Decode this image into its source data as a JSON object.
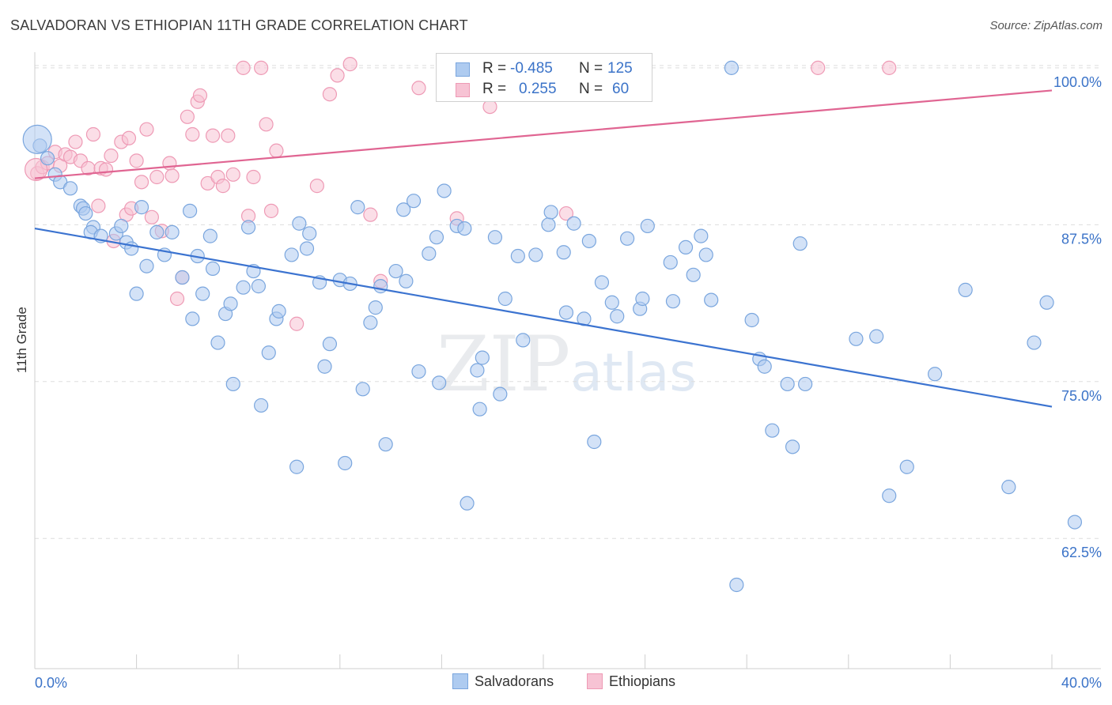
{
  "title": "SALVADORAN VS ETHIOPIAN 11TH GRADE CORRELATION CHART",
  "source": "Source: ZipAtlas.com",
  "watermark": {
    "zip": "ZIP",
    "atlas": "atlas"
  },
  "legend": {
    "rows": [
      {
        "r_label": "R =",
        "r_value": "-0.485",
        "n_label": "N =",
        "n_value": "125"
      },
      {
        "r_label": "R =",
        "r_value": "0.255",
        "n_label": "N =",
        "n_value": "60"
      }
    ]
  },
  "colors": {
    "salvadoran_fill": "#aecbf0",
    "salvadoran_stroke": "#7aa6de",
    "salvadoran_line": "#3b73d0",
    "ethiopian_fill": "#f7c3d4",
    "ethiopian_stroke": "#ee9ab5",
    "ethiopian_line": "#e06592",
    "tick_label": "#3b73c8",
    "grid": "#dddddd"
  },
  "chart_data": {
    "type": "scatter",
    "title": "SALVADORAN VS ETHIOPIAN 11TH GRADE CORRELATION CHART",
    "xlabel": "",
    "ylabel": "11th Grade",
    "xlim": [
      0,
      40
    ],
    "ylim": [
      52.5,
      101
    ],
    "x_tick_labels": [
      "0.0%",
      "40.0%"
    ],
    "y_ticks": [
      62.5,
      75.0,
      87.5,
      100.0
    ],
    "y_tick_labels": [
      "62.5%",
      "75.0%",
      "87.5%",
      "100.0%"
    ],
    "grid": true,
    "legend_position": "bottom",
    "series": [
      {
        "name": "Salvadorans",
        "r": -0.485,
        "n": 125,
        "trend": {
          "x": [
            0,
            40
          ],
          "y": [
            87.2,
            73.0
          ]
        },
        "points": [
          [
            0.2,
            93.8
          ],
          [
            0.5,
            92.8
          ],
          [
            0.8,
            91.5
          ],
          [
            1.0,
            90.9
          ],
          [
            1.4,
            90.4
          ],
          [
            1.8,
            89.0
          ],
          [
            1.9,
            88.8
          ],
          [
            2.0,
            88.4
          ],
          [
            2.3,
            87.3
          ],
          [
            2.2,
            86.9
          ],
          [
            2.6,
            86.6
          ],
          [
            3.2,
            86.8
          ],
          [
            3.4,
            87.4
          ],
          [
            3.6,
            86.1
          ],
          [
            3.8,
            85.6
          ],
          [
            4.0,
            82.0
          ],
          [
            4.2,
            88.9
          ],
          [
            4.4,
            84.2
          ],
          [
            4.8,
            86.9
          ],
          [
            5.1,
            85.1
          ],
          [
            5.4,
            86.9
          ],
          [
            5.8,
            83.3
          ],
          [
            6.1,
            88.6
          ],
          [
            6.2,
            80.0
          ],
          [
            6.4,
            85.0
          ],
          [
            6.6,
            82.0
          ],
          [
            6.9,
            86.6
          ],
          [
            7.0,
            84.0
          ],
          [
            7.2,
            78.1
          ],
          [
            7.5,
            80.4
          ],
          [
            7.7,
            81.2
          ],
          [
            7.8,
            74.8
          ],
          [
            8.2,
            82.5
          ],
          [
            8.4,
            87.3
          ],
          [
            8.6,
            83.8
          ],
          [
            8.8,
            82.6
          ],
          [
            8.9,
            73.1
          ],
          [
            9.2,
            77.3
          ],
          [
            9.5,
            80.0
          ],
          [
            9.6,
            80.6
          ],
          [
            10.1,
            85.1
          ],
          [
            10.3,
            68.2
          ],
          [
            10.4,
            87.6
          ],
          [
            10.7,
            85.6
          ],
          [
            10.8,
            86.8
          ],
          [
            11.2,
            82.9
          ],
          [
            11.4,
            76.2
          ],
          [
            11.6,
            78.0
          ],
          [
            12.0,
            83.1
          ],
          [
            12.2,
            68.5
          ],
          [
            12.4,
            82.8
          ],
          [
            12.7,
            88.9
          ],
          [
            12.9,
            74.4
          ],
          [
            13.2,
            79.7
          ],
          [
            13.4,
            80.9
          ],
          [
            13.6,
            82.6
          ],
          [
            13.8,
            70.0
          ],
          [
            14.2,
            83.8
          ],
          [
            14.5,
            88.7
          ],
          [
            14.6,
            83.0
          ],
          [
            14.9,
            89.4
          ],
          [
            15.1,
            75.8
          ],
          [
            15.5,
            85.2
          ],
          [
            15.8,
            86.5
          ],
          [
            15.9,
            74.9
          ],
          [
            16.1,
            90.2
          ],
          [
            16.6,
            87.4
          ],
          [
            16.9,
            87.2
          ],
          [
            17.0,
            65.3
          ],
          [
            17.4,
            75.9
          ],
          [
            17.5,
            72.8
          ],
          [
            17.6,
            76.9
          ],
          [
            18.1,
            86.5
          ],
          [
            18.3,
            74.0
          ],
          [
            18.5,
            81.6
          ],
          [
            19.0,
            85.0
          ],
          [
            19.2,
            78.3
          ],
          [
            19.7,
            85.1
          ],
          [
            20.2,
            87.5
          ],
          [
            20.3,
            88.5
          ],
          [
            20.8,
            85.3
          ],
          [
            20.9,
            80.5
          ],
          [
            21.2,
            87.6
          ],
          [
            21.6,
            80.0
          ],
          [
            21.8,
            86.2
          ],
          [
            22.0,
            70.2
          ],
          [
            22.3,
            82.9
          ],
          [
            22.7,
            81.3
          ],
          [
            22.9,
            80.2
          ],
          [
            23.3,
            86.4
          ],
          [
            23.8,
            80.8
          ],
          [
            23.9,
            81.6
          ],
          [
            24.1,
            87.4
          ],
          [
            25.0,
            84.5
          ],
          [
            25.1,
            81.4
          ],
          [
            25.6,
            85.7
          ],
          [
            25.9,
            83.5
          ],
          [
            26.2,
            86.6
          ],
          [
            26.4,
            85.1
          ],
          [
            26.6,
            81.5
          ],
          [
            27.4,
            100.0
          ],
          [
            27.6,
            58.8
          ],
          [
            28.2,
            79.9
          ],
          [
            28.5,
            76.8
          ],
          [
            28.7,
            76.2
          ],
          [
            29.0,
            71.1
          ],
          [
            29.6,
            74.8
          ],
          [
            29.8,
            69.8
          ],
          [
            30.1,
            86.0
          ],
          [
            30.3,
            74.8
          ],
          [
            32.3,
            78.4
          ],
          [
            33.1,
            78.6
          ],
          [
            33.6,
            65.9
          ],
          [
            34.3,
            68.2
          ],
          [
            35.4,
            75.6
          ],
          [
            36.6,
            82.3
          ],
          [
            38.3,
            66.6
          ],
          [
            39.3,
            78.1
          ],
          [
            39.8,
            81.3
          ],
          [
            40.9,
            63.8
          ]
        ]
      },
      {
        "name": "Ethiopians",
        "r": 0.255,
        "n": 60,
        "trend": {
          "x": [
            0,
            40
          ],
          "y": [
            91.2,
            98.2
          ]
        },
        "points": [
          [
            0.1,
            91.6
          ],
          [
            0.3,
            92.1
          ],
          [
            0.5,
            92.4
          ],
          [
            0.8,
            93.3
          ],
          [
            1.0,
            92.2
          ],
          [
            1.2,
            93.1
          ],
          [
            1.4,
            92.9
          ],
          [
            1.6,
            94.1
          ],
          [
            1.8,
            92.6
          ],
          [
            2.1,
            92.0
          ],
          [
            2.3,
            94.7
          ],
          [
            2.5,
            89.0
          ],
          [
            2.6,
            92.0
          ],
          [
            2.8,
            91.9
          ],
          [
            3.0,
            93.0
          ],
          [
            3.1,
            86.2
          ],
          [
            3.4,
            94.1
          ],
          [
            3.6,
            88.3
          ],
          [
            3.7,
            94.4
          ],
          [
            3.8,
            88.8
          ],
          [
            4.0,
            92.6
          ],
          [
            4.2,
            90.9
          ],
          [
            4.4,
            95.1
          ],
          [
            4.6,
            88.1
          ],
          [
            4.8,
            91.3
          ],
          [
            5.0,
            87.0
          ],
          [
            5.3,
            92.4
          ],
          [
            5.4,
            91.4
          ],
          [
            5.6,
            81.6
          ],
          [
            5.8,
            83.3
          ],
          [
            6.0,
            96.1
          ],
          [
            6.2,
            94.7
          ],
          [
            6.4,
            97.3
          ],
          [
            6.5,
            97.8
          ],
          [
            6.8,
            90.8
          ],
          [
            7.0,
            94.6
          ],
          [
            7.2,
            91.3
          ],
          [
            7.4,
            90.6
          ],
          [
            7.6,
            94.6
          ],
          [
            7.8,
            91.5
          ],
          [
            8.2,
            100.0
          ],
          [
            8.4,
            88.2
          ],
          [
            8.6,
            91.3
          ],
          [
            8.9,
            100.0
          ],
          [
            9.1,
            95.5
          ],
          [
            9.3,
            88.6
          ],
          [
            9.5,
            93.4
          ],
          [
            10.3,
            79.6
          ],
          [
            11.1,
            90.6
          ],
          [
            11.6,
            97.9
          ],
          [
            11.9,
            99.4
          ],
          [
            12.4,
            100.3
          ],
          [
            13.2,
            88.3
          ],
          [
            13.6,
            83.0
          ],
          [
            15.1,
            98.4
          ],
          [
            16.6,
            88.0
          ],
          [
            17.9,
            96.9
          ],
          [
            20.9,
            88.4
          ],
          [
            30.8,
            100.0
          ],
          [
            33.6,
            100.0
          ]
        ]
      }
    ]
  },
  "bottom_legend": {
    "salvadorans": "Salvadorans",
    "ethiopians": "Ethiopians"
  }
}
